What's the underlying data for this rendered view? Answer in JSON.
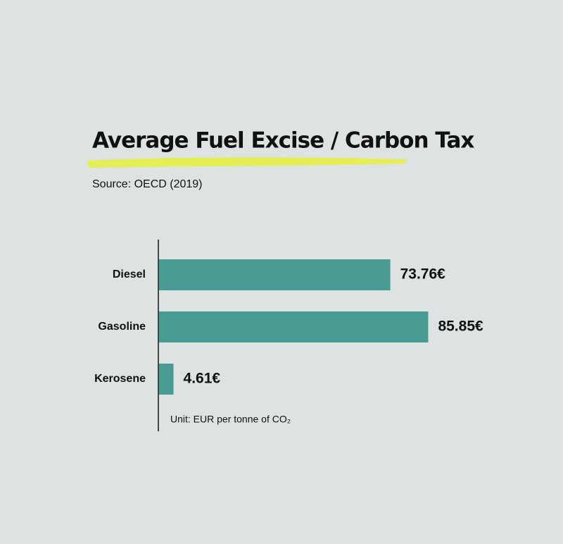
{
  "chart_data": {
    "type": "bar",
    "orientation": "horizontal",
    "title": "Average Fuel Excise / Carbon Tax",
    "subtitle": "Source: OECD (2019)",
    "note": "Unit: EUR per tonne of CO₂",
    "categories": [
      "Diesel",
      "Gasoline",
      "Kerosene"
    ],
    "values": [
      73.76,
      85.85,
      4.61
    ],
    "value_labels": [
      "73.76€",
      "85.85€",
      "4.61€"
    ],
    "color": "#4a9b93"
  }
}
